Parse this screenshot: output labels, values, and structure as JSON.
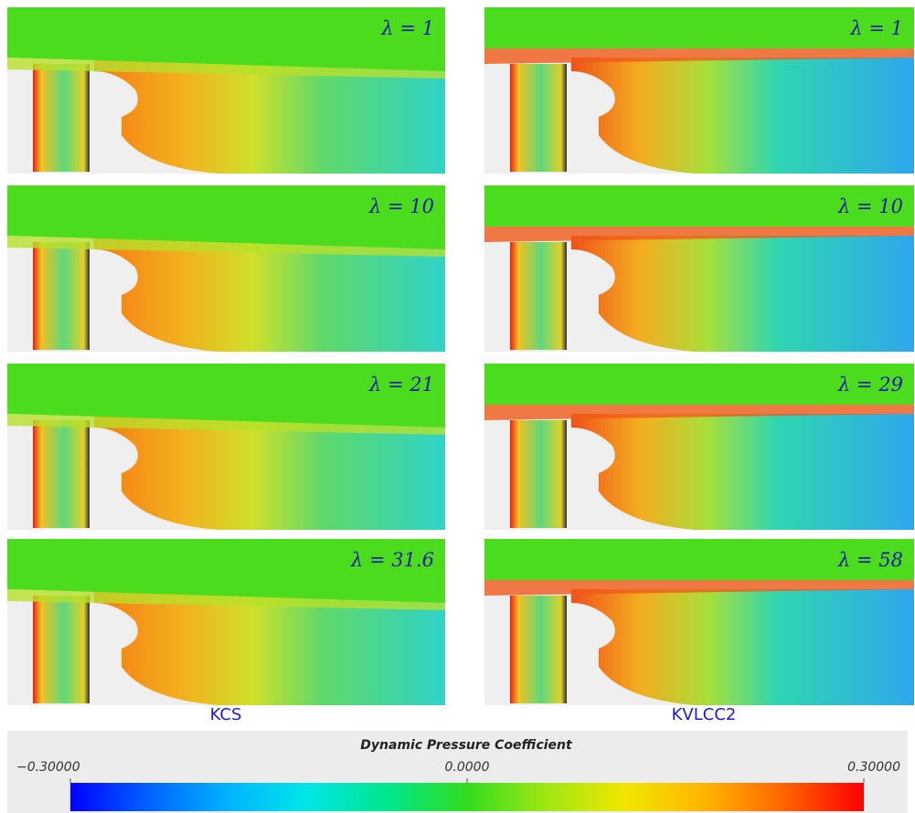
{
  "panels": [
    {
      "column": "KCS",
      "label": "λ = 1"
    },
    {
      "column": "KVLCC2",
      "label": "λ = 1"
    },
    {
      "column": "KCS",
      "label": "λ = 10"
    },
    {
      "column": "KVLCC2",
      "label": "λ = 10"
    },
    {
      "column": "KCS",
      "label": "λ = 21"
    },
    {
      "column": "KVLCC2",
      "label": "λ = 29"
    },
    {
      "column": "KCS",
      "label": "λ = 31.6"
    },
    {
      "column": "KVLCC2",
      "label": "λ = 58"
    }
  ],
  "columns": [
    "KCS",
    "KVLCC2"
  ],
  "colorbar": {
    "title": "Dynamic Pressure Coefficient",
    "ticks": [
      {
        "value": -0.3,
        "label": "−0.30000"
      },
      {
        "value": 0,
        "label": "0.0000"
      },
      {
        "value": 0.3,
        "label": "0.30000"
      }
    ],
    "range": [
      -0.3,
      0.3
    ]
  }
}
